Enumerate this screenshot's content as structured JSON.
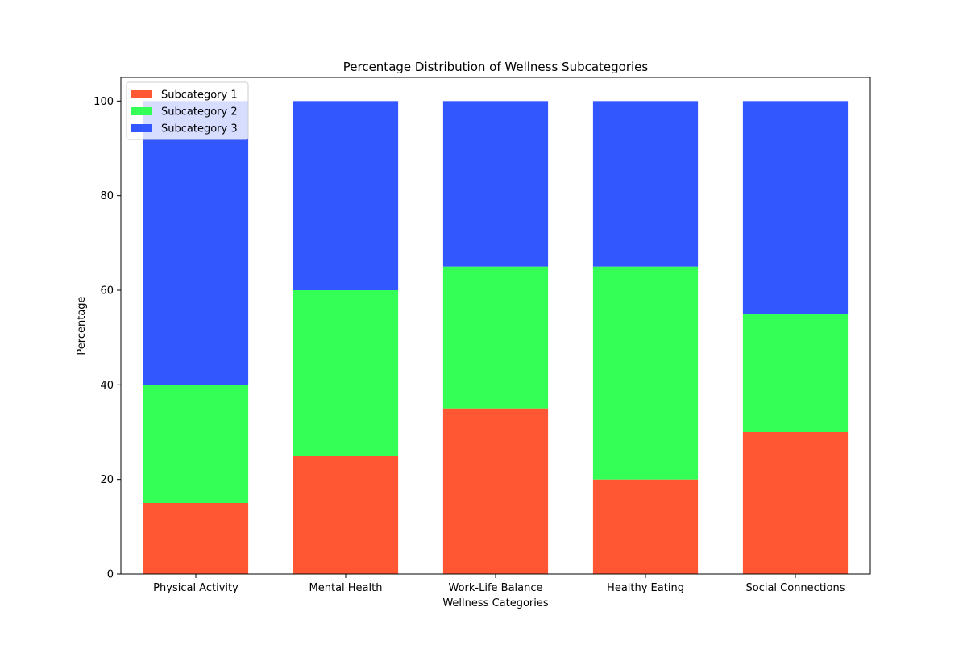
{
  "chart_data": {
    "type": "bar",
    "stacked": true,
    "title": "Percentage Distribution of Wellness Subcategories",
    "xlabel": "Wellness Categories",
    "ylabel": "Percentage",
    "categories": [
      "Physical Activity",
      "Mental Health",
      "Work-Life Balance",
      "Healthy Eating",
      "Social Connections"
    ],
    "series": [
      {
        "name": "Subcategory 1",
        "color": "#FF5733",
        "values": [
          15,
          25,
          35,
          20,
          30
        ]
      },
      {
        "name": "Subcategory 2",
        "color": "#33FF57",
        "values": [
          25,
          35,
          30,
          45,
          25
        ]
      },
      {
        "name": "Subcategory 3",
        "color": "#3357FF",
        "values": [
          60,
          40,
          35,
          35,
          45
        ]
      }
    ],
    "ylim": [
      0,
      105
    ],
    "yticks": [
      0,
      20,
      40,
      60,
      80,
      100
    ],
    "grid": false,
    "legend": "top-left"
  }
}
